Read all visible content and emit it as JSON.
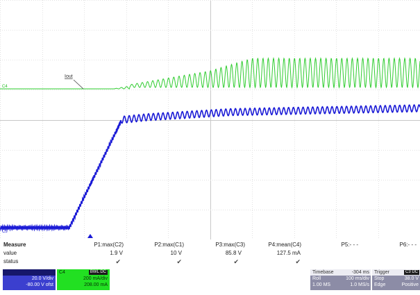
{
  "chart_data": {
    "type": "line",
    "title": "",
    "series": [
      {
        "name": "Iout",
        "channel_tag": "C4",
        "color": "#2ecc2e",
        "points": [
          {
            "x": 0,
            "y": 0.0
          },
          {
            "x": 0.27,
            "y": 0.0
          },
          {
            "x": 0.5,
            "y": 0.16
          },
          {
            "x": 0.6,
            "y": 0.28
          },
          {
            "x": 1.0,
            "y": 0.28
          }
        ]
      },
      {
        "name": "",
        "channel_tag": "C3",
        "color": "#1a1ad6",
        "points": [
          {
            "x": 0,
            "y": 0.0
          },
          {
            "x": 0.165,
            "y": 0.0
          },
          {
            "x": 0.29,
            "y": 0.84
          },
          {
            "x": 0.35,
            "y": 0.86
          },
          {
            "x": 0.55,
            "y": 0.9
          },
          {
            "x": 1.0,
            "y": 0.93
          }
        ]
      }
    ],
    "grid": true,
    "xlabel": "",
    "ylabel": ""
  },
  "measure": {
    "title": "Measure",
    "row_value": "value",
    "row_status": "status",
    "params": [
      {
        "name": "P1:max(C2)",
        "value": "1.9 V",
        "status": "✔"
      },
      {
        "name": "P2:max(C1)",
        "value": "10 V",
        "status": "✔"
      },
      {
        "name": "P3:max(C3)",
        "value": "85.8 V",
        "status": "✔"
      },
      {
        "name": "P4:mean(C4)",
        "value": "127.5 mA",
        "status": "✔"
      },
      {
        "name": "P5:- - -",
        "value": "",
        "status": ""
      },
      {
        "name": "P6:- - -",
        "value": "",
        "status": ""
      }
    ]
  },
  "channels": {
    "c3": {
      "scale": "20.0 V/div",
      "offset": "-80.00 V ofst",
      "color": "#3b3fcf"
    },
    "c4": {
      "name": "C4",
      "tag": "BWL DC",
      "scale": "200 mA/div",
      "offset": "208.00 mA",
      "color": "#22e022"
    }
  },
  "timebase": {
    "label": "Timebase",
    "delay": "-304 ms",
    "mode": "Roll",
    "scale": "100 ms/div",
    "samples": "1.00 MS",
    "rate": "1.0 MS/s"
  },
  "trigger": {
    "label": "Trigger",
    "tag": "C3 DC",
    "mode": "Stop",
    "level": "38.0 V",
    "type": "Edge",
    "slope": "Positive"
  }
}
